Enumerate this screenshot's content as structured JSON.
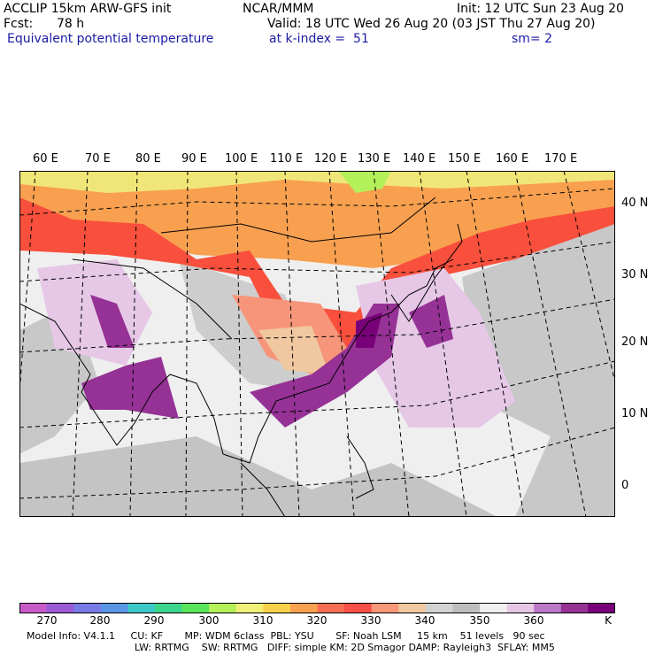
{
  "header": {
    "left1": "ACCLIP 15km ARW-GFS init",
    "center1": "NCAR/MMM",
    "right1": "Init: 12 UTC Sun 23 Aug 20",
    "fcst_label": "Fcst:",
    "fcst_value": "78 h",
    "valid": "Valid: 18 UTC Wed 26 Aug 20 (03 JST Thu 27 Aug 20)",
    "field": "Equivalent potential temperature",
    "level": "at k-index =  51",
    "smooth": "sm= 2"
  },
  "map": {
    "lon_labels": [
      "60 E",
      "70 E",
      "80 E",
      "90 E",
      "100 E",
      "110 E",
      "120 E",
      "130 E",
      "140 E",
      "150 E",
      "160 E",
      "170 E"
    ],
    "lat_labels": [
      "40 N",
      "30 N",
      "20 N",
      "10 N",
      "0"
    ]
  },
  "colorbar": {
    "labels": [
      "270",
      "280",
      "290",
      "300",
      "310",
      "320",
      "330",
      "340",
      "350",
      "360"
    ],
    "unit": "K",
    "colors": [
      "#c85ac8",
      "#9a5ad6",
      "#7a7ae6",
      "#5a96e6",
      "#3cc8c8",
      "#3cd68c",
      "#5ae65a",
      "#b4f05a",
      "#f0f078",
      "#f8d24a",
      "#f8a050",
      "#f86e50",
      "#f85046",
      "#f89678",
      "#f0c8a0",
      "#d2d2d2",
      "#bebebe",
      "#f0f0f0",
      "#e6c8e6",
      "#b978c8",
      "#963296",
      "#780078"
    ]
  },
  "model_info": {
    "line1": "Model Info: V4.1.1     CU: KF       MP: WDM 6class  PBL: YSU       SF: Noah LSM     15 km    51 levels   90 sec",
    "line2": "LW: RRTMG    SW: RRTMG   DIFF: simple KM: 2D Smagor DAMP: Rayleigh3  SFLAY: MM5"
  }
}
